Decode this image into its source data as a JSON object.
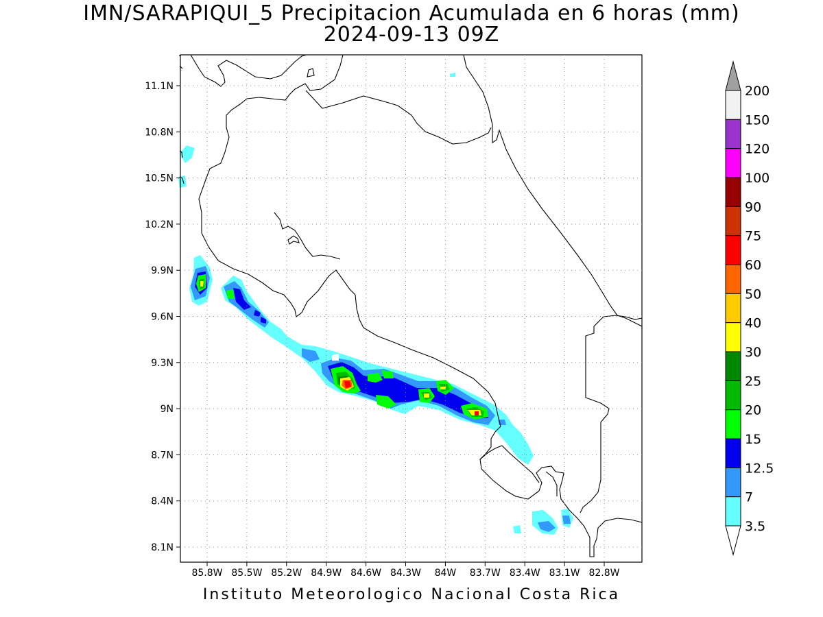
{
  "map": {
    "title": "IMN/SARAPIQUI_5 Precipitacion Acumulada en 6 horas (mm)",
    "subtitle": "2024-09-13 09Z",
    "footer": "Instituto Meteorologico Nacional Costa Rica",
    "lat_ticks": [
      "11.1N",
      "10.8N",
      "10.5N",
      "10.2N",
      "9.9N",
      "9.6N",
      "9.3N",
      "9N",
      "8.7N",
      "8.4N",
      "8.1N"
    ],
    "lon_ticks": [
      "85.8W",
      "85.5W",
      "85.2W",
      "84.9W",
      "84.6W",
      "84.3W",
      "84W",
      "83.7W",
      "83.4W",
      "83.1W",
      "82.8W"
    ]
  },
  "colorbar": {
    "labels": [
      "200",
      "150",
      "120",
      "100",
      "90",
      "75",
      "60",
      "50",
      "40",
      "30",
      "25",
      "20",
      "15",
      "12.5",
      "7",
      "3.5"
    ],
    "colors": [
      "#f2f2f2",
      "#9933cc",
      "#ff00ff",
      "#990000",
      "#cc3300",
      "#ff0000",
      "#ff6600",
      "#ffcc00",
      "#ffff00",
      "#008800",
      "#00bb00",
      "#00ff00",
      "#0000ee",
      "#3399ff",
      "#66ffff"
    ],
    "top_arrow_color": "#a0a0a0",
    "bottom_arrow_color": "#ffffff"
  }
}
